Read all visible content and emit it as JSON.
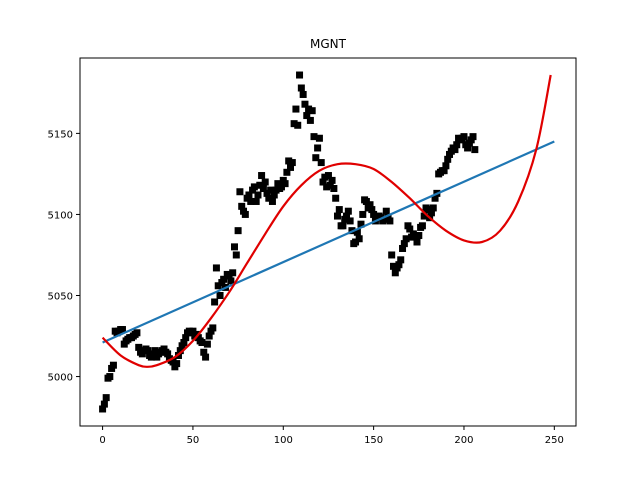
{
  "chart_data": {
    "type": "scatter",
    "title": "MGNT",
    "xlabel": "",
    "ylabel": "",
    "xlim": [
      -12.5,
      262
    ],
    "ylim": [
      4969.5,
      5196.5
    ],
    "xticks": [
      0,
      50,
      100,
      150,
      200,
      250
    ],
    "yticks": [
      5000,
      5050,
      5100,
      5150
    ],
    "grid": false,
    "legend": "none",
    "series": [
      {
        "kind": "scatter",
        "color": "#000000",
        "marker": "square",
        "points": [
          [
            0,
            4980
          ],
          [
            1,
            4983
          ],
          [
            2,
            4987
          ],
          [
            3,
            4999
          ],
          [
            4,
            5000
          ],
          [
            5,
            5005
          ],
          [
            6,
            5007
          ],
          [
            7,
            5028
          ],
          [
            8,
            5027
          ],
          [
            9,
            5028
          ],
          [
            10,
            5029
          ],
          [
            11,
            5029
          ],
          [
            12,
            5020
          ],
          [
            13,
            5022
          ],
          [
            14,
            5023
          ],
          [
            15,
            5024
          ],
          [
            16,
            5024
          ],
          [
            17,
            5025
          ],
          [
            18,
            5026
          ],
          [
            19,
            5027
          ],
          [
            20,
            5018
          ],
          [
            21,
            5015
          ],
          [
            22,
            5014
          ],
          [
            23,
            5016
          ],
          [
            24,
            5017
          ],
          [
            25,
            5016
          ],
          [
            26,
            5013
          ],
          [
            27,
            5012
          ],
          [
            28,
            5014
          ],
          [
            29,
            5016
          ],
          [
            30,
            5012
          ],
          [
            31,
            5014
          ],
          [
            32,
            5015
          ],
          [
            33,
            5016
          ],
          [
            34,
            5017
          ],
          [
            35,
            5015
          ],
          [
            36,
            5014
          ],
          [
            37,
            5011
          ],
          [
            38,
            5010
          ],
          [
            39,
            5009
          ],
          [
            40,
            5006
          ],
          [
            41,
            5008
          ],
          [
            42,
            5013
          ],
          [
            43,
            5016
          ],
          [
            44,
            5019
          ],
          [
            45,
            5021
          ],
          [
            46,
            5024
          ],
          [
            47,
            5027
          ],
          [
            48,
            5028
          ],
          [
            49,
            5027
          ],
          [
            50,
            5028
          ],
          [
            51,
            5025
          ],
          [
            52,
            5026
          ],
          [
            53,
            5024
          ],
          [
            54,
            5022
          ],
          [
            55,
            5021
          ],
          [
            56,
            5015
          ],
          [
            57,
            5012
          ],
          [
            58,
            5020
          ],
          [
            59,
            5025
          ],
          [
            60,
            5028
          ],
          [
            61,
            5030
          ],
          [
            62,
            5046
          ],
          [
            63,
            5067
          ],
          [
            64,
            5056
          ],
          [
            65,
            5050
          ],
          [
            66,
            5058
          ],
          [
            67,
            5060
          ],
          [
            68,
            5055
          ],
          [
            69,
            5063
          ],
          [
            70,
            5062
          ],
          [
            71,
            5059
          ],
          [
            72,
            5064
          ],
          [
            73,
            5080
          ],
          [
            74,
            5075
          ],
          [
            75,
            5090
          ],
          [
            76,
            5114
          ],
          [
            77,
            5105
          ],
          [
            78,
            5102
          ],
          [
            79,
            5100
          ],
          [
            80,
            5110
          ],
          [
            81,
            5112
          ],
          [
            82,
            5108
          ],
          [
            83,
            5115
          ],
          [
            84,
            5117
          ],
          [
            85,
            5108
          ],
          [
            86,
            5112
          ],
          [
            87,
            5118
          ],
          [
            88,
            5124
          ],
          [
            89,
            5116
          ],
          [
            90,
            5120
          ],
          [
            91,
            5113
          ],
          [
            92,
            5110
          ],
          [
            93,
            5115
          ],
          [
            94,
            5108
          ],
          [
            95,
            5112
          ],
          [
            96,
            5115
          ],
          [
            97,
            5119
          ],
          [
            98,
            5116
          ],
          [
            99,
            5117
          ],
          [
            100,
            5121
          ],
          [
            101,
            5119
          ],
          [
            102,
            5126
          ],
          [
            103,
            5133
          ],
          [
            104,
            5129
          ],
          [
            105,
            5132
          ],
          [
            106,
            5156
          ],
          [
            107,
            5165
          ],
          [
            108,
            5155
          ],
          [
            109,
            5186
          ],
          [
            110,
            5178
          ],
          [
            111,
            5174
          ],
          [
            112,
            5168
          ],
          [
            113,
            5161
          ],
          [
            114,
            5165
          ],
          [
            115,
            5158
          ],
          [
            116,
            5164
          ],
          [
            117,
            5148
          ],
          [
            118,
            5135
          ],
          [
            119,
            5141
          ],
          [
            120,
            5147
          ],
          [
            121,
            5132
          ],
          [
            122,
            5120
          ],
          [
            123,
            5123
          ],
          [
            124,
            5117
          ],
          [
            125,
            5124
          ],
          [
            126,
            5118
          ],
          [
            127,
            5121
          ],
          [
            128,
            5116
          ],
          [
            129,
            5110
          ],
          [
            130,
            5099
          ],
          [
            131,
            5103
          ],
          [
            132,
            5093
          ],
          [
            133,
            5093
          ],
          [
            134,
            5097
          ],
          [
            135,
            5099
          ],
          [
            136,
            5102
          ],
          [
            137,
            5096
          ],
          [
            138,
            5090
          ],
          [
            139,
            5082
          ],
          [
            140,
            5083
          ],
          [
            141,
            5089
          ],
          [
            142,
            5085
          ],
          [
            143,
            5094
          ],
          [
            144,
            5100
          ],
          [
            145,
            5109
          ],
          [
            146,
            5108
          ],
          [
            147,
            5104
          ],
          [
            148,
            5106
          ],
          [
            149,
            5103
          ],
          [
            150,
            5100
          ],
          [
            151,
            5096
          ],
          [
            152,
            5098
          ],
          [
            153,
            5099
          ],
          [
            154,
            5098
          ],
          [
            155,
            5096
          ],
          [
            156,
            5097
          ],
          [
            157,
            5102
          ],
          [
            158,
            5098
          ],
          [
            159,
            5096
          ],
          [
            160,
            5075
          ],
          [
            161,
            5068
          ],
          [
            162,
            5064
          ],
          [
            163,
            5067
          ],
          [
            164,
            5069
          ],
          [
            165,
            5072
          ],
          [
            166,
            5079
          ],
          [
            167,
            5082
          ],
          [
            168,
            5085
          ],
          [
            169,
            5093
          ],
          [
            170,
            5091
          ],
          [
            171,
            5086
          ],
          [
            172,
            5088
          ],
          [
            173,
            5087
          ],
          [
            174,
            5083
          ],
          [
            175,
            5087
          ],
          [
            176,
            5092
          ],
          [
            177,
            5093
          ],
          [
            178,
            5099
          ],
          [
            179,
            5104
          ],
          [
            180,
            5103
          ],
          [
            181,
            5098
          ],
          [
            182,
            5101
          ],
          [
            183,
            5104
          ],
          [
            184,
            5110
          ],
          [
            185,
            5113
          ],
          [
            186,
            5125
          ],
          [
            187,
            5126
          ],
          [
            188,
            5127
          ],
          [
            189,
            5127
          ],
          [
            190,
            5130
          ],
          [
            191,
            5134
          ],
          [
            192,
            5137
          ],
          [
            193,
            5139
          ],
          [
            194,
            5141
          ],
          [
            195,
            5140
          ],
          [
            196,
            5143
          ],
          [
            197,
            5147
          ],
          [
            198,
            5146
          ],
          [
            199,
            5147
          ],
          [
            200,
            5148
          ],
          [
            201,
            5143
          ],
          [
            202,
            5141
          ],
          [
            203,
            5144
          ],
          [
            204,
            5146
          ],
          [
            205,
            5148
          ],
          [
            206,
            5140
          ]
        ]
      },
      {
        "kind": "line",
        "color": "#1f77b4",
        "points": [
          [
            0,
            5021
          ],
          [
            250,
            5145
          ]
        ]
      },
      {
        "kind": "line",
        "color": "#e00000",
        "points": [
          [
            0,
            5024
          ],
          [
            10,
            5013
          ],
          [
            20,
            5007
          ],
          [
            25,
            5006
          ],
          [
            30,
            5007
          ],
          [
            40,
            5012
          ],
          [
            50,
            5022
          ],
          [
            60,
            5036
          ],
          [
            70,
            5052
          ],
          [
            80,
            5070
          ],
          [
            90,
            5088
          ],
          [
            100,
            5105
          ],
          [
            110,
            5118
          ],
          [
            120,
            5127
          ],
          [
            130,
            5131
          ],
          [
            140,
            5131
          ],
          [
            150,
            5128
          ],
          [
            160,
            5120
          ],
          [
            170,
            5110
          ],
          [
            180,
            5099
          ],
          [
            190,
            5090
          ],
          [
            200,
            5084
          ],
          [
            210,
            5083
          ],
          [
            220,
            5090
          ],
          [
            230,
            5108
          ],
          [
            240,
            5140
          ],
          [
            248,
            5186
          ]
        ]
      }
    ]
  }
}
